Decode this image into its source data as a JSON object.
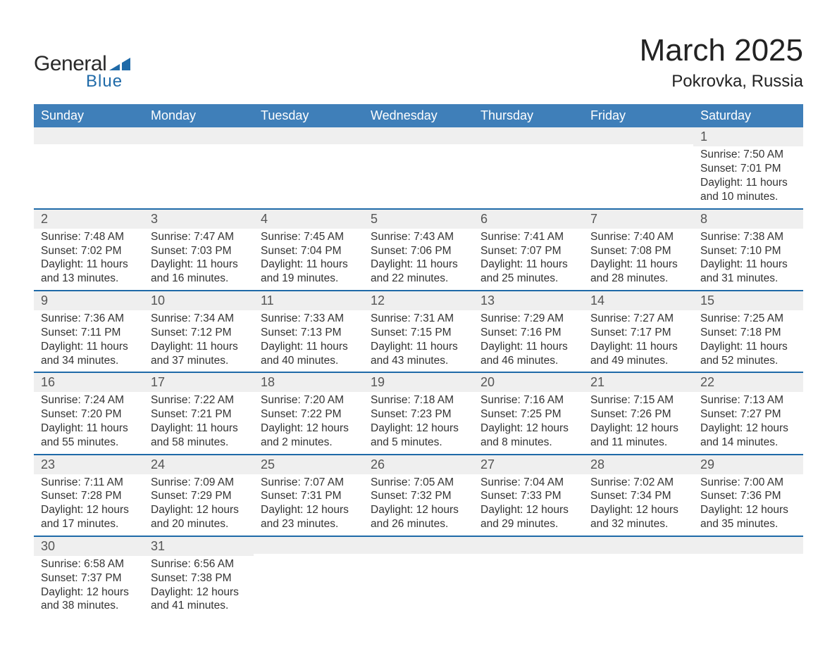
{
  "colors": {
    "header_blue": "#3f7fb9",
    "accent_blue": "#1f6aa8",
    "row_gray": "#efefef",
    "text": "#333333",
    "logo_dark": "#2a2a2a",
    "background": "#ffffff"
  },
  "typography": {
    "font_family": "Arial, Helvetica, sans-serif",
    "month_fontsize": 44,
    "location_fontsize": 24,
    "dayheader_fontsize": 18,
    "daynum_fontsize": 18,
    "details_fontsize": 15.5
  },
  "logo": {
    "text_general": "General",
    "text_blue": "Blue"
  },
  "title": "March 2025",
  "location": "Pokrovka, Russia",
  "day_headers": [
    "Sunday",
    "Monday",
    "Tuesday",
    "Wednesday",
    "Thursday",
    "Friday",
    "Saturday"
  ],
  "labels": {
    "sunrise": "Sunrise:",
    "sunset": "Sunset:",
    "daylight": "Daylight:"
  },
  "weeks": [
    [
      null,
      null,
      null,
      null,
      null,
      null,
      {
        "n": 1,
        "sunrise": "7:50 AM",
        "sunset": "7:01 PM",
        "daylight": "11 hours and 10 minutes."
      }
    ],
    [
      {
        "n": 2,
        "sunrise": "7:48 AM",
        "sunset": "7:02 PM",
        "daylight": "11 hours and 13 minutes."
      },
      {
        "n": 3,
        "sunrise": "7:47 AM",
        "sunset": "7:03 PM",
        "daylight": "11 hours and 16 minutes."
      },
      {
        "n": 4,
        "sunrise": "7:45 AM",
        "sunset": "7:04 PM",
        "daylight": "11 hours and 19 minutes."
      },
      {
        "n": 5,
        "sunrise": "7:43 AM",
        "sunset": "7:06 PM",
        "daylight": "11 hours and 22 minutes."
      },
      {
        "n": 6,
        "sunrise": "7:41 AM",
        "sunset": "7:07 PM",
        "daylight": "11 hours and 25 minutes."
      },
      {
        "n": 7,
        "sunrise": "7:40 AM",
        "sunset": "7:08 PM",
        "daylight": "11 hours and 28 minutes."
      },
      {
        "n": 8,
        "sunrise": "7:38 AM",
        "sunset": "7:10 PM",
        "daylight": "11 hours and 31 minutes."
      }
    ],
    [
      {
        "n": 9,
        "sunrise": "7:36 AM",
        "sunset": "7:11 PM",
        "daylight": "11 hours and 34 minutes."
      },
      {
        "n": 10,
        "sunrise": "7:34 AM",
        "sunset": "7:12 PM",
        "daylight": "11 hours and 37 minutes."
      },
      {
        "n": 11,
        "sunrise": "7:33 AM",
        "sunset": "7:13 PM",
        "daylight": "11 hours and 40 minutes."
      },
      {
        "n": 12,
        "sunrise": "7:31 AM",
        "sunset": "7:15 PM",
        "daylight": "11 hours and 43 minutes."
      },
      {
        "n": 13,
        "sunrise": "7:29 AM",
        "sunset": "7:16 PM",
        "daylight": "11 hours and 46 minutes."
      },
      {
        "n": 14,
        "sunrise": "7:27 AM",
        "sunset": "7:17 PM",
        "daylight": "11 hours and 49 minutes."
      },
      {
        "n": 15,
        "sunrise": "7:25 AM",
        "sunset": "7:18 PM",
        "daylight": "11 hours and 52 minutes."
      }
    ],
    [
      {
        "n": 16,
        "sunrise": "7:24 AM",
        "sunset": "7:20 PM",
        "daylight": "11 hours and 55 minutes."
      },
      {
        "n": 17,
        "sunrise": "7:22 AM",
        "sunset": "7:21 PM",
        "daylight": "11 hours and 58 minutes."
      },
      {
        "n": 18,
        "sunrise": "7:20 AM",
        "sunset": "7:22 PM",
        "daylight": "12 hours and 2 minutes."
      },
      {
        "n": 19,
        "sunrise": "7:18 AM",
        "sunset": "7:23 PM",
        "daylight": "12 hours and 5 minutes."
      },
      {
        "n": 20,
        "sunrise": "7:16 AM",
        "sunset": "7:25 PM",
        "daylight": "12 hours and 8 minutes."
      },
      {
        "n": 21,
        "sunrise": "7:15 AM",
        "sunset": "7:26 PM",
        "daylight": "12 hours and 11 minutes."
      },
      {
        "n": 22,
        "sunrise": "7:13 AM",
        "sunset": "7:27 PM",
        "daylight": "12 hours and 14 minutes."
      }
    ],
    [
      {
        "n": 23,
        "sunrise": "7:11 AM",
        "sunset": "7:28 PM",
        "daylight": "12 hours and 17 minutes."
      },
      {
        "n": 24,
        "sunrise": "7:09 AM",
        "sunset": "7:29 PM",
        "daylight": "12 hours and 20 minutes."
      },
      {
        "n": 25,
        "sunrise": "7:07 AM",
        "sunset": "7:31 PM",
        "daylight": "12 hours and 23 minutes."
      },
      {
        "n": 26,
        "sunrise": "7:05 AM",
        "sunset": "7:32 PM",
        "daylight": "12 hours and 26 minutes."
      },
      {
        "n": 27,
        "sunrise": "7:04 AM",
        "sunset": "7:33 PM",
        "daylight": "12 hours and 29 minutes."
      },
      {
        "n": 28,
        "sunrise": "7:02 AM",
        "sunset": "7:34 PM",
        "daylight": "12 hours and 32 minutes."
      },
      {
        "n": 29,
        "sunrise": "7:00 AM",
        "sunset": "7:36 PM",
        "daylight": "12 hours and 35 minutes."
      }
    ],
    [
      {
        "n": 30,
        "sunrise": "6:58 AM",
        "sunset": "7:37 PM",
        "daylight": "12 hours and 38 minutes."
      },
      {
        "n": 31,
        "sunrise": "6:56 AM",
        "sunset": "7:38 PM",
        "daylight": "12 hours and 41 minutes."
      },
      null,
      null,
      null,
      null,
      null
    ]
  ]
}
